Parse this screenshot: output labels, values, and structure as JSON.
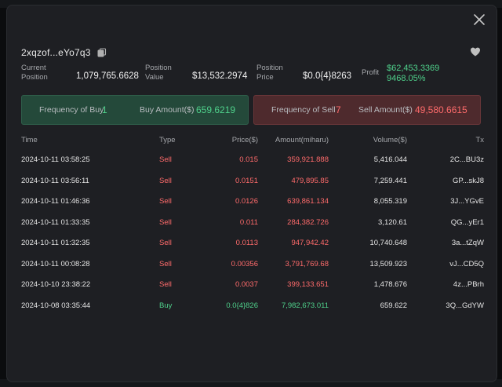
{
  "header": {
    "address": "2xqzof...eYo7q3"
  },
  "stats": {
    "current_position_label": "Current\nPosition",
    "current_position_value": "1,079,765.6628",
    "position_value_label": "Position\nValue",
    "position_value_value": "$13,532.2974",
    "position_price_label": "Position\nPrice",
    "position_price_value": "$0.0{4}8263",
    "profit_label": "Profit",
    "profit_amount": "$62,453.3369",
    "profit_percent": "9468.05%"
  },
  "buy_panel": {
    "freq_label": "Frequency of Buy",
    "freq_value": "1",
    "amount_label": "Buy Amount($)",
    "amount_value": "659.6219"
  },
  "sell_panel": {
    "freq_label": "Frequency of Sell",
    "freq_value": "7",
    "amount_label": "Sell Amount($)",
    "amount_value": "49,580.6615"
  },
  "table": {
    "headers": {
      "time": "Time",
      "type": "Type",
      "price": "Price($)",
      "amount": "Amount(miharu)",
      "volume": "Volume($)",
      "tx": "Tx"
    },
    "rows": [
      {
        "time": "2024-10-11 03:58:25",
        "type": "Sell",
        "price": "0.015",
        "amount": "359,921.888",
        "volume": "5,416.044",
        "tx": "2C...BU3z"
      },
      {
        "time": "2024-10-11 03:56:11",
        "type": "Sell",
        "price": "0.0151",
        "amount": "479,895.85",
        "volume": "7,259.441",
        "tx": "GP...skJ8"
      },
      {
        "time": "2024-10-11 01:46:36",
        "type": "Sell",
        "price": "0.0126",
        "amount": "639,861.134",
        "volume": "8,055.319",
        "tx": "3J...YGvE"
      },
      {
        "time": "2024-10-11 01:33:35",
        "type": "Sell",
        "price": "0.011",
        "amount": "284,382.726",
        "volume": "3,120.61",
        "tx": "QG...yEr1"
      },
      {
        "time": "2024-10-11 01:32:35",
        "type": "Sell",
        "price": "0.0113",
        "amount": "947,942.42",
        "volume": "10,740.648",
        "tx": "3a...tZqW"
      },
      {
        "time": "2024-10-11 00:08:28",
        "type": "Sell",
        "price": "0.00356",
        "amount": "3,791,769.68",
        "volume": "13,509.923",
        "tx": "vJ...CD5Q"
      },
      {
        "time": "2024-10-10 23:38:22",
        "type": "Sell",
        "price": "0.0037",
        "amount": "399,133.651",
        "volume": "1,478.676",
        "tx": "4z...PBrh"
      },
      {
        "time": "2024-10-08 03:35:44",
        "type": "Buy",
        "price": "0.0{4}826",
        "amount": "7,982,673.011",
        "volume": "659.622",
        "tx": "3Q...GdYW"
      }
    ]
  },
  "colors": {
    "buy": "#4fd18b",
    "sell": "#ff6b6b",
    "modal_bg": "#1e1f23"
  },
  "icons": {
    "close": "close-icon",
    "copy": "copy-icon",
    "favorite": "heart-icon"
  }
}
